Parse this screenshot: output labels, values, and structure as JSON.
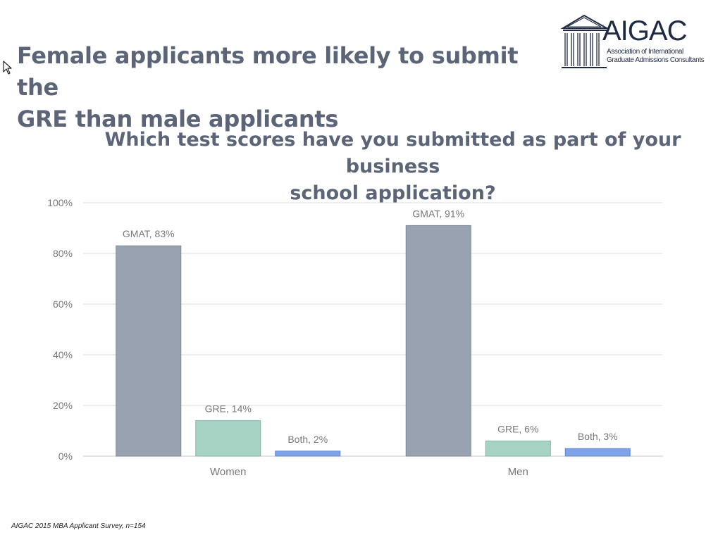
{
  "slide": {
    "title_line1": "Female applicants more likely to submit the",
    "title_line2": "GRE than male applicants",
    "footnote": "AIGAC 2015 MBA Applicant Survey, n=154"
  },
  "logo": {
    "name": "AIGAC",
    "subtitle_line1": "Association of International",
    "subtitle_line2": "Graduate Admissions Consultants",
    "icon": "building-columns-icon"
  },
  "colors": {
    "title": "#5b6577",
    "gmat": "#98a2b0",
    "gre": "#a6d3c4",
    "both": "#7fa3e6",
    "grid": "#dcdcdc",
    "axis_text": "#777777"
  },
  "chart_data": {
    "type": "bar",
    "title_line1": "Which test scores have you submitted as part of your business",
    "title_line2": "school application?",
    "categories": [
      "Women",
      "Men"
    ],
    "series": [
      {
        "name": "GMAT",
        "values": [
          83,
          91
        ],
        "labels": [
          "GMAT, 83%",
          "GMAT, 91%"
        ]
      },
      {
        "name": "GRE",
        "values": [
          14,
          6
        ],
        "labels": [
          "GRE, 14%",
          "GRE, 6%"
        ]
      },
      {
        "name": "Both",
        "values": [
          2,
          3
        ],
        "labels": [
          "Both, 2%",
          "Both, 3%"
        ]
      }
    ],
    "ylim": [
      0,
      100
    ],
    "yticks": [
      "0%",
      "20%",
      "40%",
      "60%",
      "80%",
      "100%"
    ],
    "grid": true,
    "legend": "none",
    "data_labels": "above bars"
  }
}
